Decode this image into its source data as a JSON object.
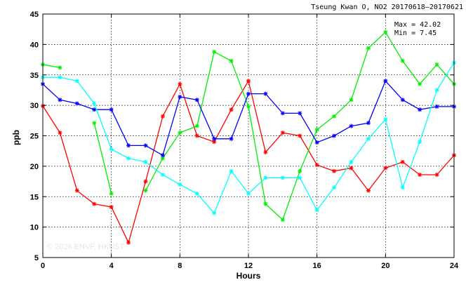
{
  "chart_data": {
    "type": "line",
    "title": "Tseung Kwan O, NO2 20170618–20170621",
    "xlabel": "Hours",
    "ylabel": "ppb",
    "xlim": [
      0,
      24
    ],
    "ylim": [
      5,
      45
    ],
    "x_ticks": [
      "0",
      "4",
      "8",
      "12",
      "16",
      "20",
      "24"
    ],
    "y_ticks": [
      "5",
      "10",
      "15",
      "20",
      "25",
      "30",
      "35",
      "40",
      "45"
    ],
    "grid": true,
    "stats": {
      "max_label": "Max = 42.02",
      "min_label": "Min =  7.45"
    },
    "watermark": "© 2026  ENVF, HKUST",
    "x": [
      0,
      1,
      2,
      3,
      4,
      5,
      6,
      7,
      8,
      9,
      10,
      11,
      12,
      13,
      14,
      15,
      16,
      17,
      18,
      19,
      20,
      21,
      22,
      23,
      24
    ],
    "series": [
      {
        "color": "#ff0000",
        "values": [
          29.9,
          25.5,
          16.0,
          13.8,
          13.3,
          7.45,
          17.5,
          28.2,
          33.5,
          25.0,
          24.0,
          29.3,
          34.0,
          22.3,
          25.5,
          25.0,
          20.2,
          19.2,
          19.7,
          16.0,
          19.7,
          20.7,
          18.6,
          18.6,
          21.8
        ]
      },
      {
        "color": "#00ee00",
        "values": [
          36.7,
          36.2,
          null,
          27.1,
          15.5,
          null,
          16.0,
          21.3,
          25.5,
          26.6,
          38.8,
          37.3,
          29.8,
          13.8,
          11.2,
          19.2,
          26.0,
          28.2,
          30.9,
          39.4,
          42.02,
          37.3,
          33.5,
          36.7,
          33.5
        ]
      },
      {
        "color": "#0000ff",
        "values": [
          33.5,
          30.9,
          30.3,
          29.3,
          29.3,
          23.4,
          23.4,
          21.8,
          31.4,
          30.9,
          24.5,
          24.5,
          31.9,
          31.9,
          28.7,
          28.7,
          23.9,
          25.0,
          26.6,
          27.1,
          34.0,
          30.9,
          29.3,
          29.8,
          29.8
        ]
      },
      {
        "color": "#00ffff",
        "values": [
          34.6,
          34.6,
          34.0,
          30.3,
          22.8,
          21.3,
          20.7,
          18.6,
          17.0,
          15.5,
          12.3,
          19.2,
          15.5,
          18.1,
          18.1,
          18.1,
          12.8,
          16.5,
          20.7,
          24.5,
          27.7,
          16.5,
          24.0,
          32.5,
          37.0
        ]
      }
    ]
  }
}
